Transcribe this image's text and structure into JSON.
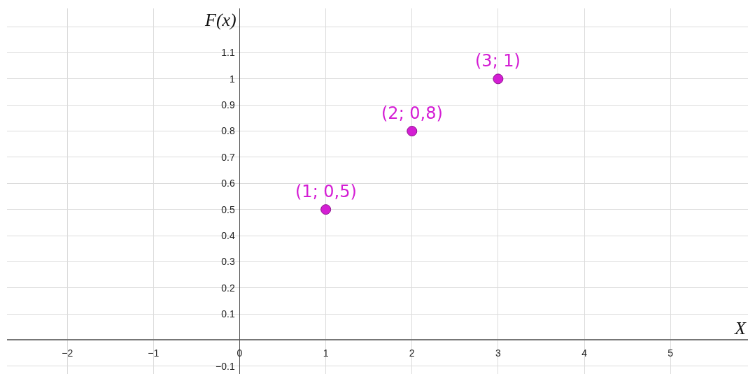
{
  "chart_data": {
    "type": "scatter",
    "xlabel": "X",
    "ylabel": "F(x)",
    "x": [
      1,
      2,
      3
    ],
    "values": [
      0.5,
      0.8,
      1
    ],
    "color": "#d41ed4",
    "marker": "circle",
    "grid": true,
    "xlim": [
      -2.7,
      5.9
    ],
    "ylim": [
      -0.13,
      1.27
    ],
    "xticks": [
      -2,
      -1,
      0,
      1,
      2,
      3,
      4,
      5
    ],
    "yticks": [
      {
        "value": -0.1,
        "label": "−0.1"
      },
      {
        "value": 0,
        "label": null
      },
      0.1,
      0.2,
      0.3,
      0.4,
      0.5,
      0.6,
      0.7,
      0.8,
      0.9,
      1,
      1.1,
      {
        "value": 1.2,
        "label": null
      }
    ],
    "annotations": [
      {
        "text": "(1; 0,5)",
        "x": 1,
        "y": 0.5
      },
      {
        "text": "(2; 0,8)",
        "x": 2,
        "y": 0.8
      },
      {
        "text": "(3; 1)",
        "x": 3,
        "y": 1
      }
    ]
  }
}
